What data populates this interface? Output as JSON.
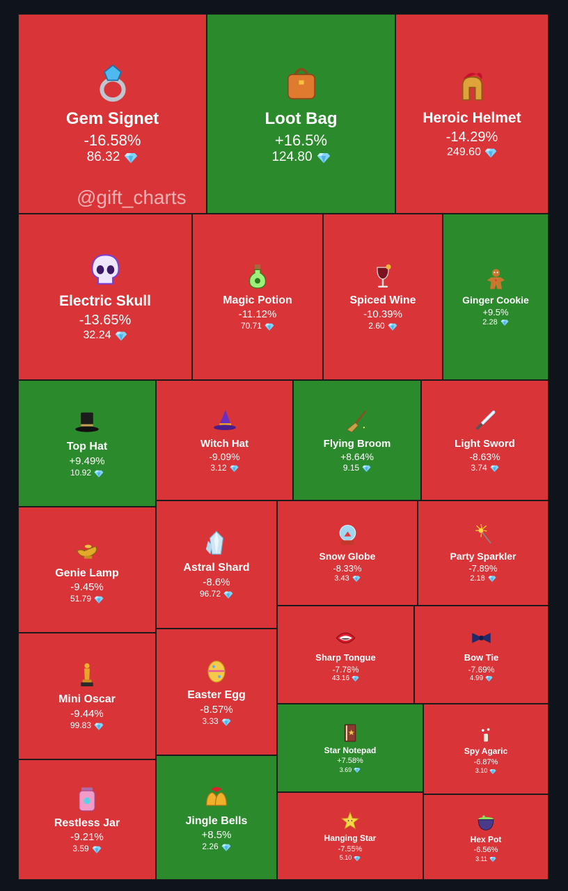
{
  "watermark": "@gift_charts",
  "colors": {
    "down": "#d93438",
    "up": "#2b8a2c",
    "background": "#0f141b",
    "currency": "#7fd3ff"
  },
  "chart_data": {
    "type": "treemap",
    "currency_icon": "diamond-icon",
    "items": [
      {
        "name": "Gem Signet",
        "change": "-16.58%",
        "price": "86.32",
        "icon": "ring-icon"
      },
      {
        "name": "Loot Bag",
        "change": "+16.5%",
        "price": "124.80",
        "icon": "bag-icon"
      },
      {
        "name": "Heroic Helmet",
        "change": "-14.29%",
        "price": "249.60",
        "icon": "helmet-icon"
      },
      {
        "name": "Electric Skull",
        "change": "-13.65%",
        "price": "32.24",
        "icon": "skull-icon"
      },
      {
        "name": "Magic Potion",
        "change": "-11.12%",
        "price": "70.71",
        "icon": "potion-icon"
      },
      {
        "name": "Spiced Wine",
        "change": "-10.39%",
        "price": "2.60",
        "icon": "wine-icon"
      },
      {
        "name": "Ginger Cookie",
        "change": "+9.5%",
        "price": "2.28",
        "icon": "cookie-icon"
      },
      {
        "name": "Top Hat",
        "change": "+9.49%",
        "price": "10.92",
        "icon": "top-hat-icon"
      },
      {
        "name": "Witch Hat",
        "change": "-9.09%",
        "price": "3.12",
        "icon": "witch-hat-icon"
      },
      {
        "name": "Flying Broom",
        "change": "+8.64%",
        "price": "9.15",
        "icon": "broom-icon"
      },
      {
        "name": "Light Sword",
        "change": "-8.63%",
        "price": "3.74",
        "icon": "sword-icon"
      },
      {
        "name": "Genie Lamp",
        "change": "-9.45%",
        "price": "51.79",
        "icon": "lamp-icon"
      },
      {
        "name": "Astral Shard",
        "change": "-8.6%",
        "price": "96.72",
        "icon": "crystal-icon"
      },
      {
        "name": "Snow Globe",
        "change": "-8.33%",
        "price": "3.43",
        "icon": "snow-globe-icon"
      },
      {
        "name": "Party Sparkler",
        "change": "-7.89%",
        "price": "2.18",
        "icon": "sparkler-icon"
      },
      {
        "name": "Sharp Tongue",
        "change": "-7.78%",
        "price": "43.16",
        "icon": "mouth-icon"
      },
      {
        "name": "Bow Tie",
        "change": "-7.69%",
        "price": "4.99",
        "icon": "bow-tie-icon"
      },
      {
        "name": "Mini Oscar",
        "change": "-9.44%",
        "price": "99.83",
        "icon": "trophy-icon"
      },
      {
        "name": "Easter Egg",
        "change": "-8.57%",
        "price": "3.33",
        "icon": "egg-icon"
      },
      {
        "name": "Star Notepad",
        "change": "+7.58%",
        "price": "3.69",
        "icon": "notepad-icon"
      },
      {
        "name": "Spy Agaric",
        "change": "-6.87%",
        "price": "3.10",
        "icon": "mushroom-icon"
      },
      {
        "name": "Restless Jar",
        "change": "-9.21%",
        "price": "3.59",
        "icon": "jar-icon"
      },
      {
        "name": "Jingle Bells",
        "change": "+8.5%",
        "price": "2.26",
        "icon": "bells-icon"
      },
      {
        "name": "Hanging Star",
        "change": "-7.55%",
        "price": "5.10",
        "icon": "star-icon"
      },
      {
        "name": "Hex Pot",
        "change": "-6.56%",
        "price": "3.11",
        "icon": "cauldron-icon"
      }
    ]
  }
}
